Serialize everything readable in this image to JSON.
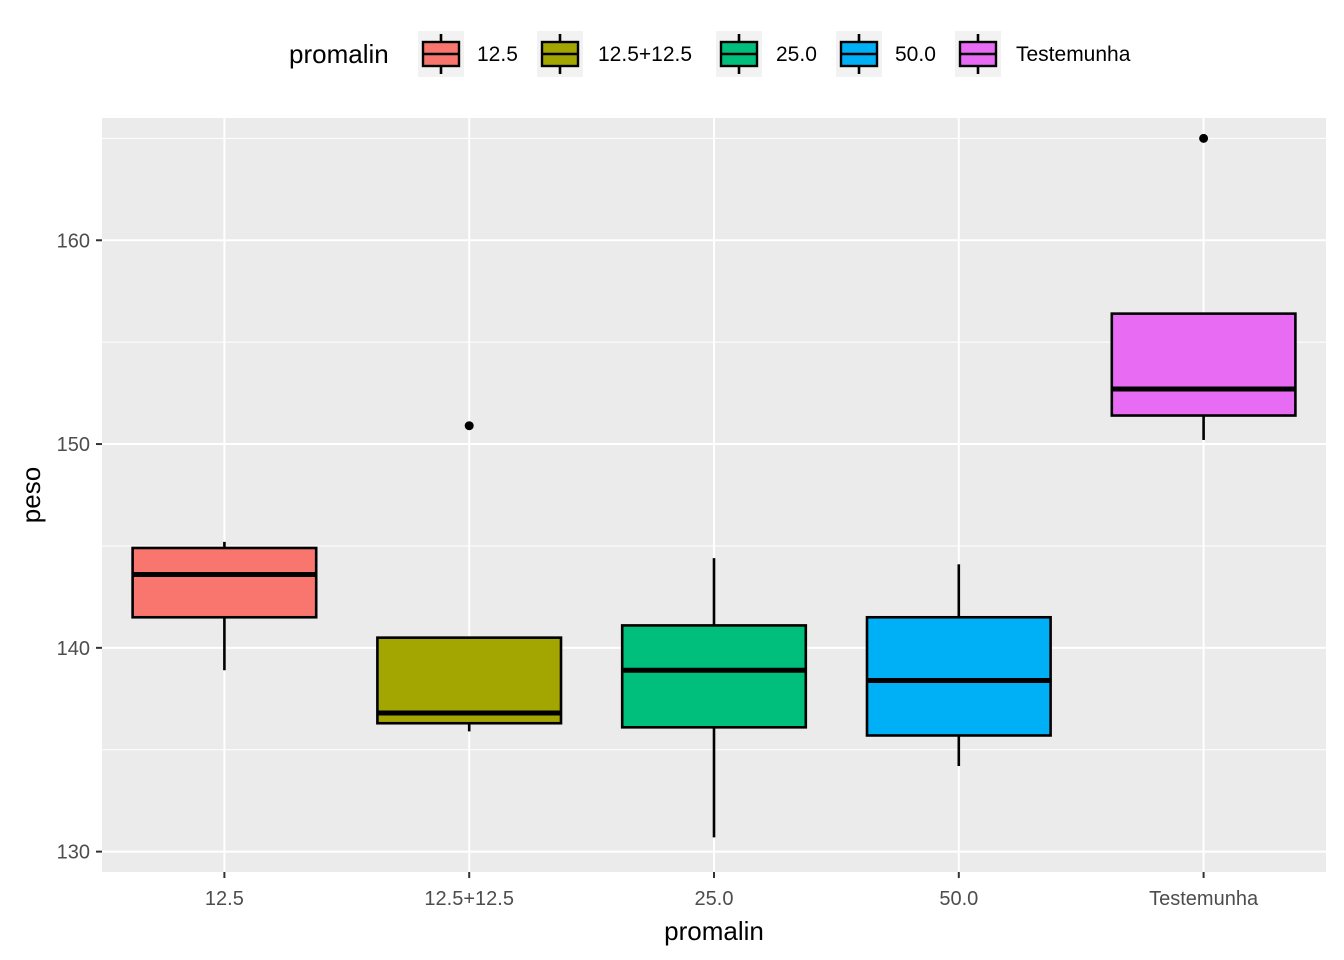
{
  "chart_data": {
    "type": "boxplot",
    "xlabel": "promalin",
    "ylabel": "peso",
    "ylim": [
      129,
      166
    ],
    "yticks": [
      130,
      140,
      150,
      160
    ],
    "grid": true,
    "legend": {
      "title": "promalin",
      "position": "top"
    },
    "categories": [
      "12.5",
      "12.5+12.5",
      "25.0",
      "50.0",
      "Testemunha"
    ],
    "boxes": [
      {
        "category": "12.5",
        "color": "#F8766D",
        "whisker_low": 138.9,
        "q1": 141.5,
        "median": 143.6,
        "q3": 144.9,
        "whisker_high": 145.2,
        "outliers": []
      },
      {
        "category": "12.5+12.5",
        "color": "#A3A500",
        "whisker_low": 135.9,
        "q1": 136.3,
        "median": 136.8,
        "q3": 140.5,
        "whisker_high": 140.5,
        "outliers": [
          150.9
        ]
      },
      {
        "category": "25.0",
        "color": "#00BF7D",
        "whisker_low": 130.7,
        "q1": 136.1,
        "median": 138.9,
        "q3": 141.1,
        "whisker_high": 144.4,
        "outliers": []
      },
      {
        "category": "50.0",
        "color": "#00B0F6",
        "whisker_low": 134.2,
        "q1": 135.7,
        "median": 138.4,
        "q3": 141.5,
        "whisker_high": 144.1,
        "outliers": []
      },
      {
        "category": "Testemunha",
        "color": "#E76BF3",
        "whisker_low": 150.2,
        "q1": 151.4,
        "median": 152.7,
        "q3": 156.4,
        "whisker_high": 156.4,
        "outliers": [
          165
        ]
      }
    ]
  }
}
